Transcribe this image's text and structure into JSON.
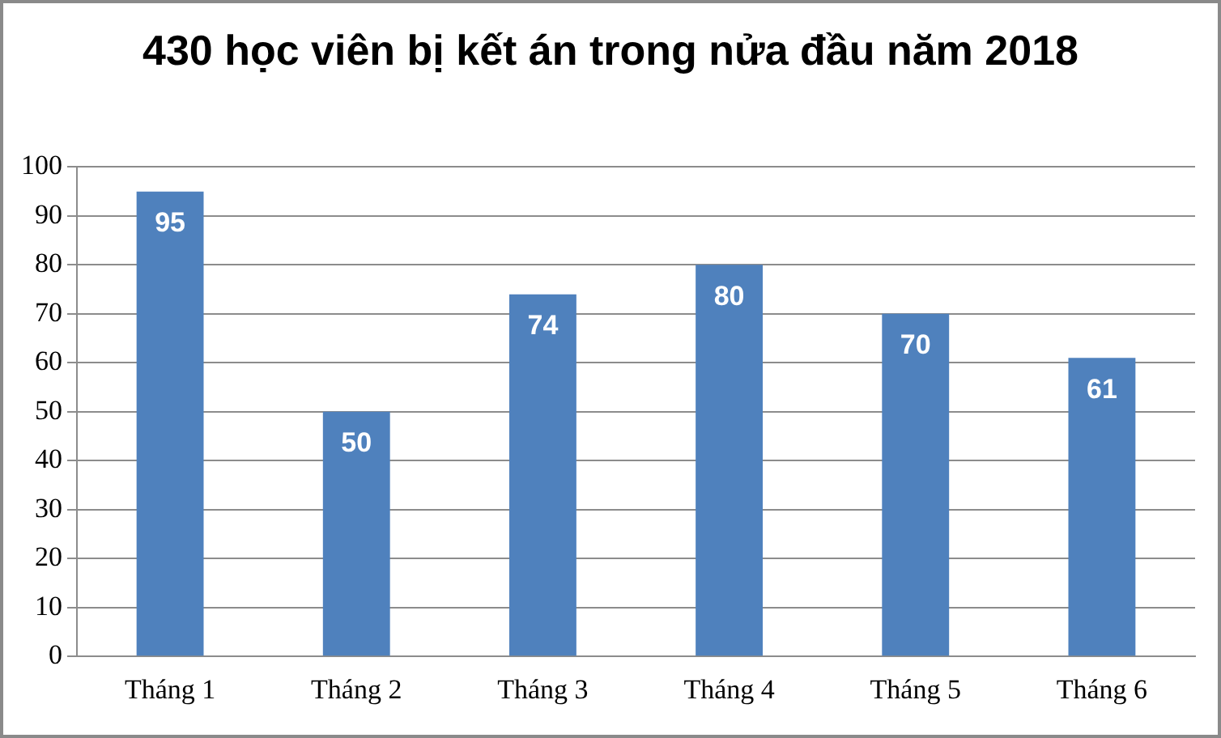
{
  "chart_data": {
    "type": "bar",
    "title": "430 học viên bị kết án trong nửa đầu năm 2018",
    "categories": [
      "Tháng 1",
      "Tháng 2",
      "Tháng 3",
      "Tháng 4",
      "Tháng 5",
      "Tháng 6"
    ],
    "values": [
      95,
      50,
      74,
      80,
      70,
      61
    ],
    "color": "#4f81bd",
    "ylim": [
      0,
      100
    ],
    "yticks": [
      0,
      10,
      20,
      30,
      40,
      50,
      60,
      70,
      80,
      90,
      100
    ],
    "grid": "y",
    "data_labels": true,
    "legend": false
  }
}
